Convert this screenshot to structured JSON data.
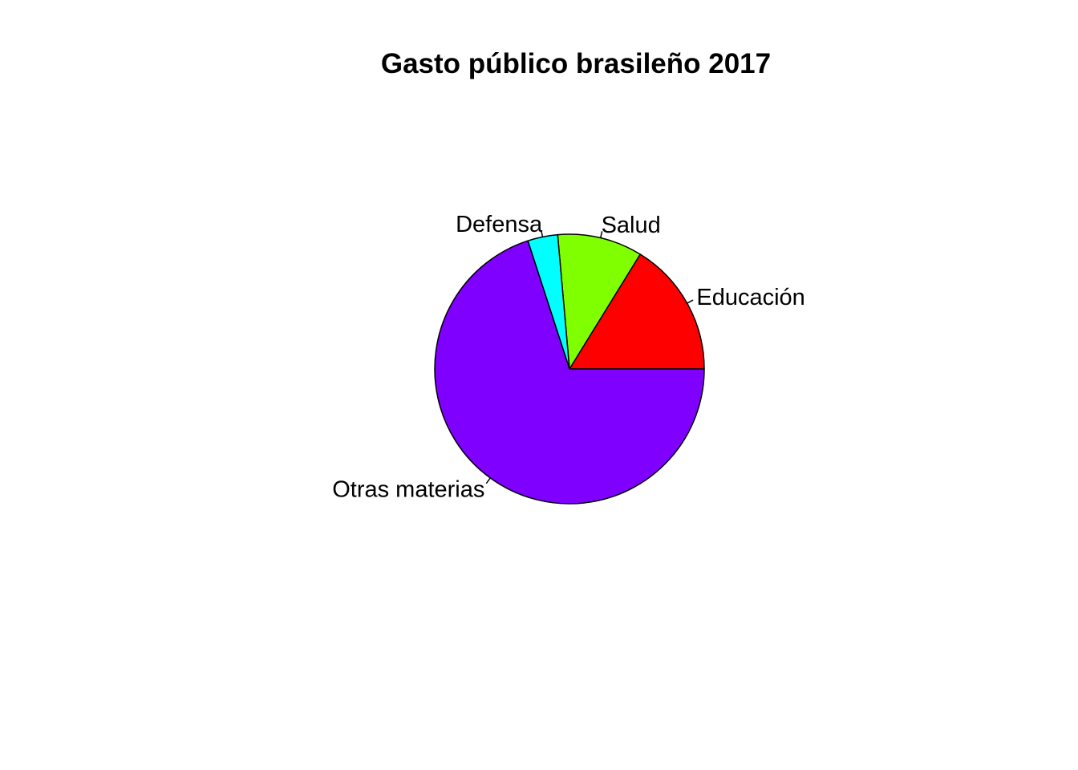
{
  "chart_data": {
    "type": "pie",
    "title": "Gasto público brasileño 2017",
    "categories": [
      "Educación",
      "Salud",
      "Defensa",
      "Otras materias"
    ],
    "values": [
      16.2,
      10.2,
      3.6,
      70.0
    ],
    "colors": [
      "#FF0000",
      "#80FF00",
      "#00FFFF",
      "#8000FF"
    ],
    "start_angle_deg": 0,
    "direction": "counterclockwise",
    "border_color": "#000000"
  }
}
